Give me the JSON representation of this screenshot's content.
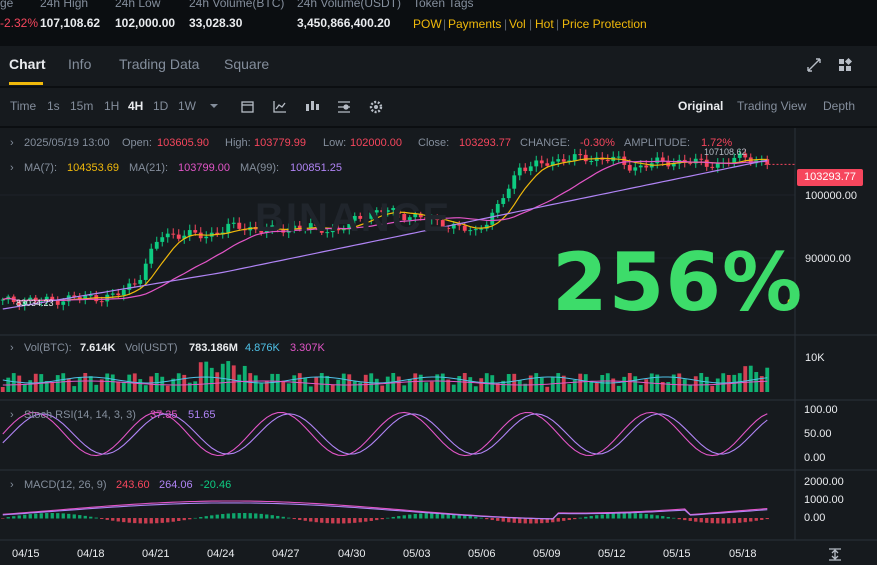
{
  "top_stats": {
    "change_pct": "-2.32%",
    "high_label": "24h High",
    "high_value": "107,108.62",
    "low_label": "24h Low",
    "low_value": "102,000.00",
    "vol_btc_label": "24h Volume(BTC)",
    "vol_btc_value": "33,028.30",
    "vol_usdt_label": "24h Volume(USDT)",
    "vol_usdt_value": "3,450,866,400.20",
    "tags_label": "Token Tags",
    "tags": [
      "POW",
      "Payments",
      "Vol",
      "Hot",
      "Price Protection"
    ],
    "tag_sep": "|",
    "first_label": "ge"
  },
  "tabs": [
    "Chart",
    "Info",
    "Trading Data",
    "Square"
  ],
  "toolbar": {
    "time_label": "Time",
    "intervals": [
      "1s",
      "15m",
      "1H",
      "4H",
      "1D",
      "1W"
    ],
    "dropdown_icon": "chevron-down-icon",
    "views": [
      "Original",
      "Trading View",
      "Depth"
    ]
  },
  "ohlc": {
    "datetime": "2025/05/19 13:00",
    "open_label": "Open:",
    "open": "103605.90",
    "high_label": "High:",
    "high": "103779.99",
    "low_label": "Low:",
    "low": "102000.00",
    "close_label": "Close:",
    "close": "103293.77",
    "change_label": "CHANGE:",
    "change": "-0.30%",
    "amplitude_label": "AMPLITUDE:",
    "amplitude": "1.72%"
  },
  "ma": {
    "ma7_label": "MA(7):",
    "ma7": "104353.69",
    "ma21_label": "MA(21):",
    "ma21": "103799.00",
    "ma99_label": "MA(99):",
    "ma99": "100851.25"
  },
  "price_axis": [
    "100000.00",
    "90000.00"
  ],
  "current_price": "103293.77",
  "max_marker": "107108.62",
  "min_marker": "83034.23",
  "overlay_text": "256%",
  "watermark": "BINANCE",
  "volume": {
    "label": "Vol(BTC):",
    "btc": "7.614K",
    "usdt_label": "Vol(USDT)",
    "usdt": "783.186M",
    "ma1": "4.876K",
    "ma2": "3.307K",
    "axis": "10K"
  },
  "stoch": {
    "label": "Stoch RSI(14, 14, 3, 3)",
    "k": "37.35",
    "d": "51.65",
    "axis": [
      "100.00",
      "50.00",
      "0.00"
    ]
  },
  "macd": {
    "label": "MACD(12, 26, 9)",
    "macd": "243.60",
    "signal": "264.06",
    "hist": "-20.46",
    "axis": [
      "2000.00",
      "1000.00",
      "0.00"
    ]
  },
  "dates": [
    "04/15",
    "04/18",
    "04/21",
    "04/24",
    "04/27",
    "04/30",
    "05/03",
    "05/06",
    "05/09",
    "05/12",
    "05/15",
    "05/18"
  ],
  "colors": {
    "up": "#0ecb81",
    "down": "#f6465d",
    "ma7": "#f0b90b",
    "ma21": "#e255c7",
    "ma99": "#b084f5",
    "accent": "#f0b90b"
  },
  "chart_data": {
    "type": "candlestick",
    "x": [
      "04/15",
      "04/16",
      "04/17",
      "04/18",
      "04/19",
      "04/20",
      "04/21",
      "04/22",
      "04/23",
      "04/24",
      "04/25",
      "04/26",
      "04/27",
      "04/28",
      "04/29",
      "04/30",
      "05/01",
      "05/02",
      "05/03",
      "05/04",
      "05/05",
      "05/06",
      "05/07",
      "05/08",
      "05/09",
      "05/10",
      "05/11",
      "05/12",
      "05/13",
      "05/14",
      "05/15",
      "05/16",
      "05/17",
      "05/18",
      "05/19"
    ],
    "close": [
      84500,
      84800,
      84600,
      85000,
      85100,
      85200,
      87500,
      93500,
      93800,
      93400,
      94700,
      94600,
      94200,
      94800,
      94500,
      94300,
      96400,
      97000,
      96300,
      95800,
      94800,
      94000,
      97200,
      103000,
      103200,
      104200,
      104000,
      104200,
      102800,
      103500,
      103700,
      103500,
      103300,
      104500,
      103293.77
    ],
    "ylim": [
      82000,
      108000
    ]
  }
}
